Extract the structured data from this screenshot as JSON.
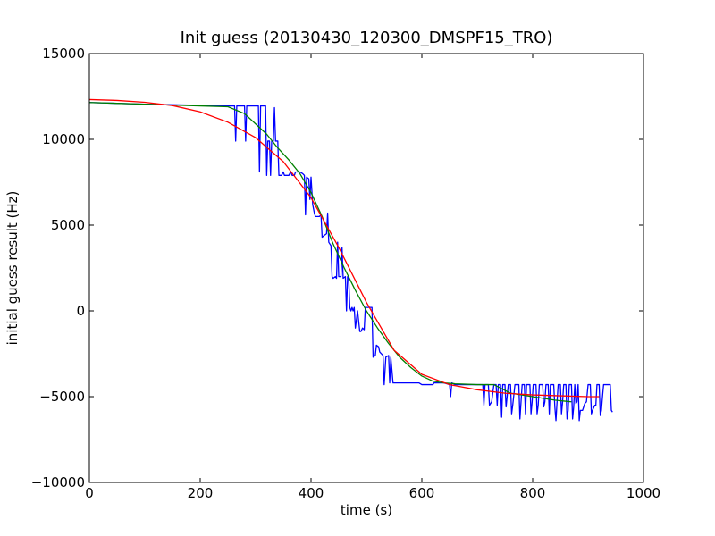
{
  "chart_data": {
    "type": "line",
    "title": "Init guess (20130430_120300_DMSPF15_TRO)",
    "xlabel": "time (s)",
    "ylabel": "initial guess result (Hz)",
    "xlim": [
      0,
      1000
    ],
    "ylim": [
      -10000,
      15000
    ],
    "xticks": [
      0,
      200,
      400,
      600,
      800,
      1000
    ],
    "yticks": [
      -10000,
      -5000,
      0,
      5000,
      10000,
      15000
    ],
    "xtick_labels": [
      "0",
      "200",
      "400",
      "600",
      "800",
      "1000"
    ],
    "ytick_labels": [
      "−10000",
      "−5000",
      "0",
      "5000",
      "10000",
      "15000"
    ],
    "grid": false,
    "legend": "none",
    "series": [
      {
        "color": "#0000ff",
        "points": [
          [
            0,
            12150
          ],
          [
            100,
            12050
          ],
          [
            180,
            12000
          ],
          [
            255,
            11950
          ],
          [
            262,
            11950
          ],
          [
            264,
            9900
          ],
          [
            266,
            11950
          ],
          [
            280,
            11950
          ],
          [
            282,
            9900
          ],
          [
            284,
            11950
          ],
          [
            288,
            11950
          ],
          [
            290,
            11950
          ],
          [
            292,
            11950
          ],
          [
            305,
            11950
          ],
          [
            307,
            8100
          ],
          [
            309,
            11950
          ],
          [
            318,
            11950
          ],
          [
            320,
            7900
          ],
          [
            322,
            9900
          ],
          [
            325,
            9900
          ],
          [
            327,
            7900
          ],
          [
            329,
            9900
          ],
          [
            332,
            9900
          ],
          [
            334,
            11850
          ],
          [
            336,
            9900
          ],
          [
            340,
            9900
          ],
          [
            342,
            7900
          ],
          [
            345,
            7900
          ],
          [
            347,
            7900
          ],
          [
            350,
            8100
          ],
          [
            352,
            7900
          ],
          [
            360,
            7900
          ],
          [
            363,
            8100
          ],
          [
            366,
            7900
          ],
          [
            370,
            7900
          ],
          [
            372,
            8100
          ],
          [
            380,
            8100
          ],
          [
            385,
            8000
          ],
          [
            388,
            7900
          ],
          [
            390,
            5600
          ],
          [
            392,
            7800
          ],
          [
            396,
            7700
          ],
          [
            398,
            6500
          ],
          [
            400,
            7800
          ],
          [
            403,
            6200
          ],
          [
            406,
            5700
          ],
          [
            408,
            5500
          ],
          [
            415,
            5500
          ],
          [
            418,
            5600
          ],
          [
            420,
            4300
          ],
          [
            424,
            4400
          ],
          [
            428,
            4500
          ],
          [
            430,
            5700
          ],
          [
            432,
            4000
          ],
          [
            436,
            3800
          ],
          [
            438,
            2000
          ],
          [
            440,
            1900
          ],
          [
            444,
            2000
          ],
          [
            446,
            1900
          ],
          [
            448,
            4000
          ],
          [
            450,
            2000
          ],
          [
            454,
            2000
          ],
          [
            456,
            3700
          ],
          [
            458,
            1900
          ],
          [
            462,
            2000
          ],
          [
            464,
            0
          ],
          [
            466,
            2000
          ],
          [
            468,
            1900
          ],
          [
            470,
            200
          ],
          [
            472,
            0
          ],
          [
            474,
            200
          ],
          [
            476,
            0
          ],
          [
            478,
            200
          ],
          [
            480,
            -1000
          ],
          [
            484,
            0
          ],
          [
            488,
            -1200
          ],
          [
            490,
            -1200
          ],
          [
            493,
            -1000
          ],
          [
            496,
            -1100
          ],
          [
            498,
            200
          ],
          [
            510,
            200
          ],
          [
            512,
            -2700
          ],
          [
            516,
            -2600
          ],
          [
            518,
            -2000
          ],
          [
            522,
            -2100
          ],
          [
            524,
            -2400
          ],
          [
            530,
            -2600
          ],
          [
            532,
            -4300
          ],
          [
            535,
            -2700
          ],
          [
            540,
            -2600
          ],
          [
            542,
            -4200
          ],
          [
            544,
            -2700
          ],
          [
            548,
            -4200
          ],
          [
            550,
            -4200
          ],
          [
            580,
            -4200
          ],
          [
            595,
            -4200
          ],
          [
            600,
            -4300
          ],
          [
            620,
            -4300
          ],
          [
            622,
            -4200
          ],
          [
            640,
            -4200
          ],
          [
            650,
            -4300
          ],
          [
            652,
            -5000
          ],
          [
            654,
            -4200
          ],
          [
            660,
            -4300
          ],
          [
            700,
            -4300
          ],
          [
            710,
            -4300
          ],
          [
            712,
            -5500
          ],
          [
            714,
            -4300
          ],
          [
            720,
            -4300
          ],
          [
            722,
            -5500
          ],
          [
            726,
            -5300
          ],
          [
            730,
            -4300
          ],
          [
            734,
            -4300
          ],
          [
            736,
            -5500
          ],
          [
            738,
            -4300
          ],
          [
            742,
            -4300
          ],
          [
            744,
            -6200
          ],
          [
            746,
            -4300
          ],
          [
            750,
            -4300
          ],
          [
            752,
            -5600
          ],
          [
            756,
            -4300
          ],
          [
            760,
            -4300
          ],
          [
            762,
            -6000
          ],
          [
            764,
            -5500
          ],
          [
            768,
            -4300
          ],
          [
            775,
            -4300
          ],
          [
            777,
            -6300
          ],
          [
            779,
            -5300
          ],
          [
            781,
            -4300
          ],
          [
            785,
            -4300
          ],
          [
            787,
            -6000
          ],
          [
            789,
            -4300
          ],
          [
            795,
            -4300
          ],
          [
            797,
            -6000
          ],
          [
            799,
            -5300
          ],
          [
            801,
            -4300
          ],
          [
            806,
            -4300
          ],
          [
            808,
            -6000
          ],
          [
            810,
            -5500
          ],
          [
            812,
            -4300
          ],
          [
            818,
            -4300
          ],
          [
            820,
            -5600
          ],
          [
            822,
            -5300
          ],
          [
            824,
            -4300
          ],
          [
            828,
            -4300
          ],
          [
            830,
            -6000
          ],
          [
            832,
            -4300
          ],
          [
            838,
            -4300
          ],
          [
            840,
            -5600
          ],
          [
            842,
            -6400
          ],
          [
            844,
            -5300
          ],
          [
            846,
            -4300
          ],
          [
            850,
            -4300
          ],
          [
            852,
            -6000
          ],
          [
            854,
            -5300
          ],
          [
            856,
            -4300
          ],
          [
            860,
            -4300
          ],
          [
            862,
            -6300
          ],
          [
            864,
            -5800
          ],
          [
            866,
            -4300
          ],
          [
            870,
            -4300
          ],
          [
            872,
            -6300
          ],
          [
            874,
            -5600
          ],
          [
            876,
            -4300
          ],
          [
            878,
            -5400
          ],
          [
            880,
            -5300
          ],
          [
            882,
            -4300
          ],
          [
            884,
            -6400
          ],
          [
            886,
            -5800
          ],
          [
            890,
            -5800
          ],
          [
            894,
            -5400
          ],
          [
            897,
            -5300
          ],
          [
            900,
            -4300
          ],
          [
            904,
            -4300
          ],
          [
            906,
            -6000
          ],
          [
            908,
            -5800
          ],
          [
            912,
            -5500
          ],
          [
            914,
            -5500
          ],
          [
            916,
            -4300
          ],
          [
            920,
            -4300
          ],
          [
            922,
            -6100
          ],
          [
            924,
            -5800
          ],
          [
            926,
            -5000
          ],
          [
            928,
            -4300
          ],
          [
            940,
            -4300
          ],
          [
            942,
            -5800
          ],
          [
            944,
            -5900
          ]
        ]
      },
      {
        "color": "#008000",
        "points": [
          [
            0,
            12150
          ],
          [
            100,
            12050
          ],
          [
            150,
            12000
          ],
          [
            200,
            11950
          ],
          [
            250,
            11900
          ],
          [
            280,
            11500
          ],
          [
            300,
            10900
          ],
          [
            320,
            10300
          ],
          [
            340,
            9500
          ],
          [
            360,
            8800
          ],
          [
            380,
            8000
          ],
          [
            400,
            6900
          ],
          [
            420,
            5500
          ],
          [
            440,
            3900
          ],
          [
            460,
            2500
          ],
          [
            480,
            1200
          ],
          [
            500,
            0
          ],
          [
            520,
            -1000
          ],
          [
            540,
            -1900
          ],
          [
            560,
            -2700
          ],
          [
            580,
            -3300
          ],
          [
            600,
            -3800
          ],
          [
            620,
            -4100
          ],
          [
            640,
            -4200
          ],
          [
            660,
            -4250
          ],
          [
            700,
            -4300
          ],
          [
            730,
            -4300
          ],
          [
            760,
            -4800
          ],
          [
            800,
            -5000
          ],
          [
            840,
            -5200
          ],
          [
            870,
            -5300
          ]
        ]
      },
      {
        "color": "#ff0000",
        "points": [
          [
            0,
            12320
          ],
          [
            50,
            12270
          ],
          [
            100,
            12160
          ],
          [
            150,
            11970
          ],
          [
            200,
            11600
          ],
          [
            250,
            11000
          ],
          [
            300,
            10100
          ],
          [
            350,
            8700
          ],
          [
            400,
            6600
          ],
          [
            450,
            3700
          ],
          [
            500,
            500
          ],
          [
            550,
            -2300
          ],
          [
            600,
            -3700
          ],
          [
            650,
            -4300
          ],
          [
            700,
            -4600
          ],
          [
            750,
            -4800
          ],
          [
            800,
            -4900
          ],
          [
            850,
            -4950
          ],
          [
            900,
            -5000
          ],
          [
            920,
            -5000
          ]
        ]
      }
    ]
  }
}
